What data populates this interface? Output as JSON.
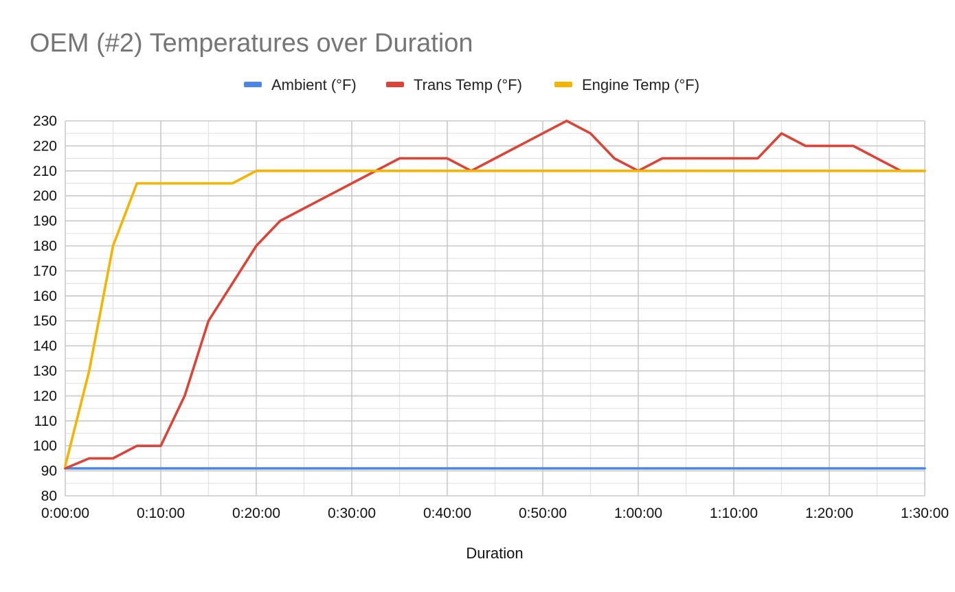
{
  "chart_data": {
    "type": "line",
    "title": "OEM (#2) Temperatures over Duration",
    "xlabel": "Duration",
    "ylabel": "",
    "legend_position": "top",
    "grid": true,
    "x_unit": "minutes",
    "xlim": [
      0,
      90
    ],
    "ylim": [
      80,
      230
    ],
    "y_ticks": [
      80,
      90,
      100,
      110,
      120,
      130,
      140,
      150,
      160,
      170,
      180,
      190,
      200,
      210,
      220,
      230
    ],
    "x_ticks": [
      {
        "value": 0,
        "label": "0:00:00"
      },
      {
        "value": 10,
        "label": "0:10:00"
      },
      {
        "value": 20,
        "label": "0:20:00"
      },
      {
        "value": 30,
        "label": "0:30:00"
      },
      {
        "value": 40,
        "label": "0:40:00"
      },
      {
        "value": 50,
        "label": "0:50:00"
      },
      {
        "value": 60,
        "label": "1:00:00"
      },
      {
        "value": 70,
        "label": "1:10:00"
      },
      {
        "value": 80,
        "label": "1:20:00"
      },
      {
        "value": 90,
        "label": "1:30:00"
      }
    ],
    "x": [
      0,
      2.5,
      5,
      7.5,
      10,
      12.5,
      15,
      17.5,
      20,
      22.5,
      25,
      27.5,
      30,
      32.5,
      35,
      37.5,
      40,
      42.5,
      45,
      47.5,
      50,
      52.5,
      55,
      57.5,
      60,
      62.5,
      65,
      67.5,
      70,
      72.5,
      75,
      77.5,
      80,
      82.5,
      85,
      87.5,
      90
    ],
    "series": [
      {
        "name": "Ambient (°F)",
        "color": "#4a86e8",
        "values": [
          91,
          91,
          91,
          91,
          91,
          91,
          91,
          91,
          91,
          91,
          91,
          91,
          91,
          91,
          91,
          91,
          91,
          91,
          91,
          91,
          91,
          91,
          91,
          91,
          91,
          91,
          91,
          91,
          91,
          91,
          91,
          91,
          91,
          91,
          91,
          91,
          91
        ]
      },
      {
        "name": "Trans Temp (°F)",
        "color": "#db4437",
        "values": [
          91,
          95,
          95,
          100,
          100,
          120,
          150,
          165,
          180,
          190,
          195,
          200,
          205,
          210,
          215,
          215,
          215,
          210,
          215,
          220,
          225,
          230,
          225,
          215,
          210,
          215,
          215,
          215,
          215,
          215,
          225,
          220,
          220,
          220,
          215,
          210,
          210
        ]
      },
      {
        "name": "Engine Temp (°F)",
        "color": "#f4b400",
        "values": [
          92,
          130,
          180,
          205,
          205,
          205,
          205,
          205,
          210,
          210,
          210,
          210,
          210,
          210,
          210,
          210,
          210,
          210,
          210,
          210,
          210,
          210,
          210,
          210,
          210,
          210,
          210,
          210,
          210,
          210,
          210,
          210,
          210,
          210,
          210,
          210,
          210
        ]
      }
    ]
  }
}
